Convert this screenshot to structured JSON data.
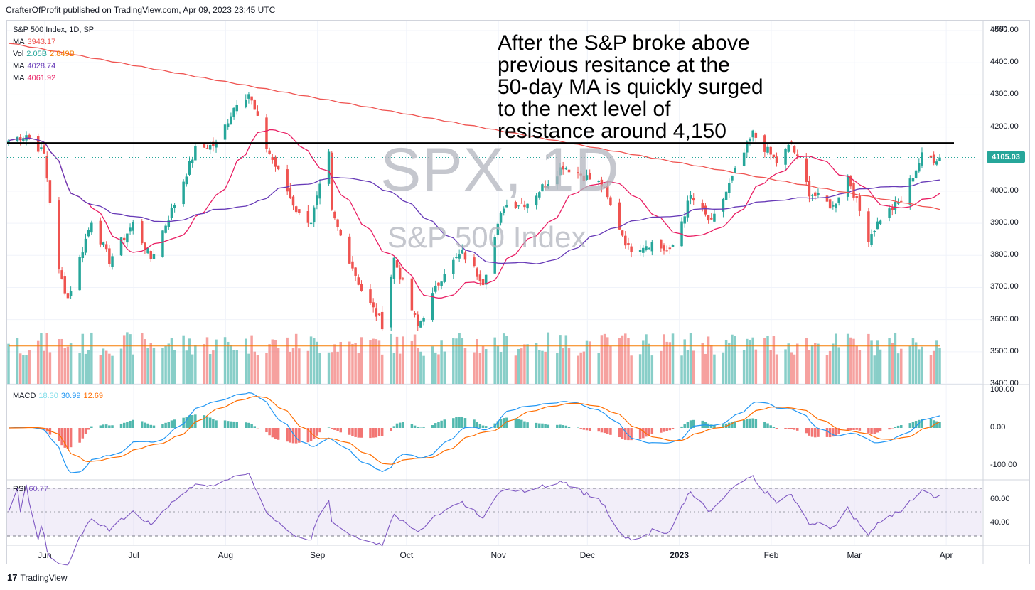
{
  "publisher_line": "CrafterOfProfit published on TradingView.com, Apr 09, 2023 23:45 UTC",
  "footer": {
    "logo": "17",
    "brand": "TradingView"
  },
  "annotation": [
    "After the S&P broke above",
    "previous resitance at the",
    "50-day MA is quickly surged",
    "to the next level of",
    "resistance around 4,150"
  ],
  "watermark": {
    "big": "SPX, 1D",
    "small": "S&P 500 Index"
  },
  "legend": {
    "symbol": "S&P 500 Index, 1D, SP",
    "ma1": {
      "label": "MA",
      "value": "3943.17",
      "color": "#ef5350"
    },
    "vol": {
      "label": "Vol",
      "value1": "2.05B",
      "value2": "2.849B",
      "color1": "#26a69a",
      "color2": "#f57c00"
    },
    "ma2": {
      "label": "MA",
      "value": "4028.74",
      "color": "#673ab7"
    },
    "ma3": {
      "label": "MA",
      "value": "4061.92",
      "color": "#e91e63"
    },
    "macd": {
      "label": "MACD",
      "v1": "18.30",
      "v2": "30.99",
      "v3": "12.69"
    },
    "rsi": {
      "label": "RSI",
      "value": "60.77"
    }
  },
  "last_price_tag": "4105.03",
  "currency": "USD",
  "colors": {
    "up": "#26a69a",
    "down": "#ef5350",
    "ma200": "#ef5350",
    "ma50": "#673ab7",
    "ma20": "#e91e63",
    "macd": "#2196f3",
    "signal": "#ff6d00",
    "rsi": "#7e57c2",
    "volma": "#f57c00"
  },
  "chart_data": {
    "type": "candlestick",
    "title": "S&P 500 Index, 1D, SP",
    "price_axis_ticks": [
      "4500.00",
      "4400.00",
      "4300.00",
      "4200.00",
      "4100.00",
      "4000.00",
      "3900.00",
      "3800.00",
      "3700.00",
      "3600.00",
      "3500.00",
      "3400.00"
    ],
    "macd_axis_ticks": [
      "100.00",
      "0.00",
      "-100.00"
    ],
    "rsi_axis_ticks": [
      "60.00",
      "40.00"
    ],
    "x_tick_labels": [
      "Jun",
      "Jul",
      "Aug",
      "Sep",
      "Oct",
      "Nov",
      "Dec",
      "2023",
      "Feb",
      "Mar",
      "Apr"
    ],
    "resistance_level": 4150,
    "price_ylim": [
      3400,
      4520
    ],
    "date_range": [
      "2022-05-27",
      "2023-04-06"
    ],
    "close_path": [
      [
        "2022-05-27",
        4158
      ],
      [
        "2022-06-02",
        4176
      ],
      [
        "2022-06-08",
        4115
      ],
      [
        "2022-06-13",
        3750
      ],
      [
        "2022-06-16",
        3667
      ],
      [
        "2022-06-24",
        3911
      ],
      [
        "2022-06-30",
        3785
      ],
      [
        "2022-07-08",
        3899
      ],
      [
        "2022-07-14",
        3790
      ],
      [
        "2022-07-22",
        3962
      ],
      [
        "2022-07-29",
        4130
      ],
      [
        "2022-08-05",
        4145
      ],
      [
        "2022-08-12",
        4280
      ],
      [
        "2022-08-16",
        4305
      ],
      [
        "2022-08-22",
        4137
      ],
      [
        "2022-08-26",
        4058
      ],
      [
        "2022-09-02",
        3924
      ],
      [
        "2022-09-06",
        3908
      ],
      [
        "2022-09-12",
        4110
      ],
      [
        "2022-09-13",
        3932
      ],
      [
        "2022-09-23",
        3693
      ],
      [
        "2022-09-30",
        3585
      ],
      [
        "2022-10-04",
        3790
      ],
      [
        "2022-10-12",
        3577
      ],
      [
        "2022-10-21",
        3752
      ],
      [
        "2022-10-27",
        3807
      ],
      [
        "2022-11-03",
        3720
      ],
      [
        "2022-11-10",
        3956
      ],
      [
        "2022-11-18",
        3965
      ],
      [
        "2022-11-30",
        4080
      ],
      [
        "2022-12-13",
        4019
      ],
      [
        "2022-12-22",
        3822
      ],
      [
        "2022-12-30",
        3839
      ],
      [
        "2023-01-05",
        3808
      ],
      [
        "2023-01-12",
        3983
      ],
      [
        "2023-01-19",
        3898
      ],
      [
        "2023-02-02",
        4179
      ],
      [
        "2023-02-10",
        4090
      ],
      [
        "2023-02-15",
        4147
      ],
      [
        "2023-02-21",
        3997
      ],
      [
        "2023-03-01",
        3951
      ],
      [
        "2023-03-06",
        4048
      ],
      [
        "2023-03-13",
        3855
      ],
      [
        "2023-03-17",
        3916
      ],
      [
        "2023-03-24",
        3970
      ],
      [
        "2023-03-31",
        4109
      ],
      [
        "2023-04-04",
        4100
      ],
      [
        "2023-04-06",
        4105
      ]
    ],
    "ma20_last": 4061.92,
    "ma50_last": 4028.74,
    "ma200_last": 3943.17,
    "volume_last": "2.05B",
    "volume_ma_last": "2.849B",
    "macd_last": {
      "hist": 18.3,
      "macd": 30.99,
      "signal": 12.69
    },
    "rsi_last": 60.77
  }
}
